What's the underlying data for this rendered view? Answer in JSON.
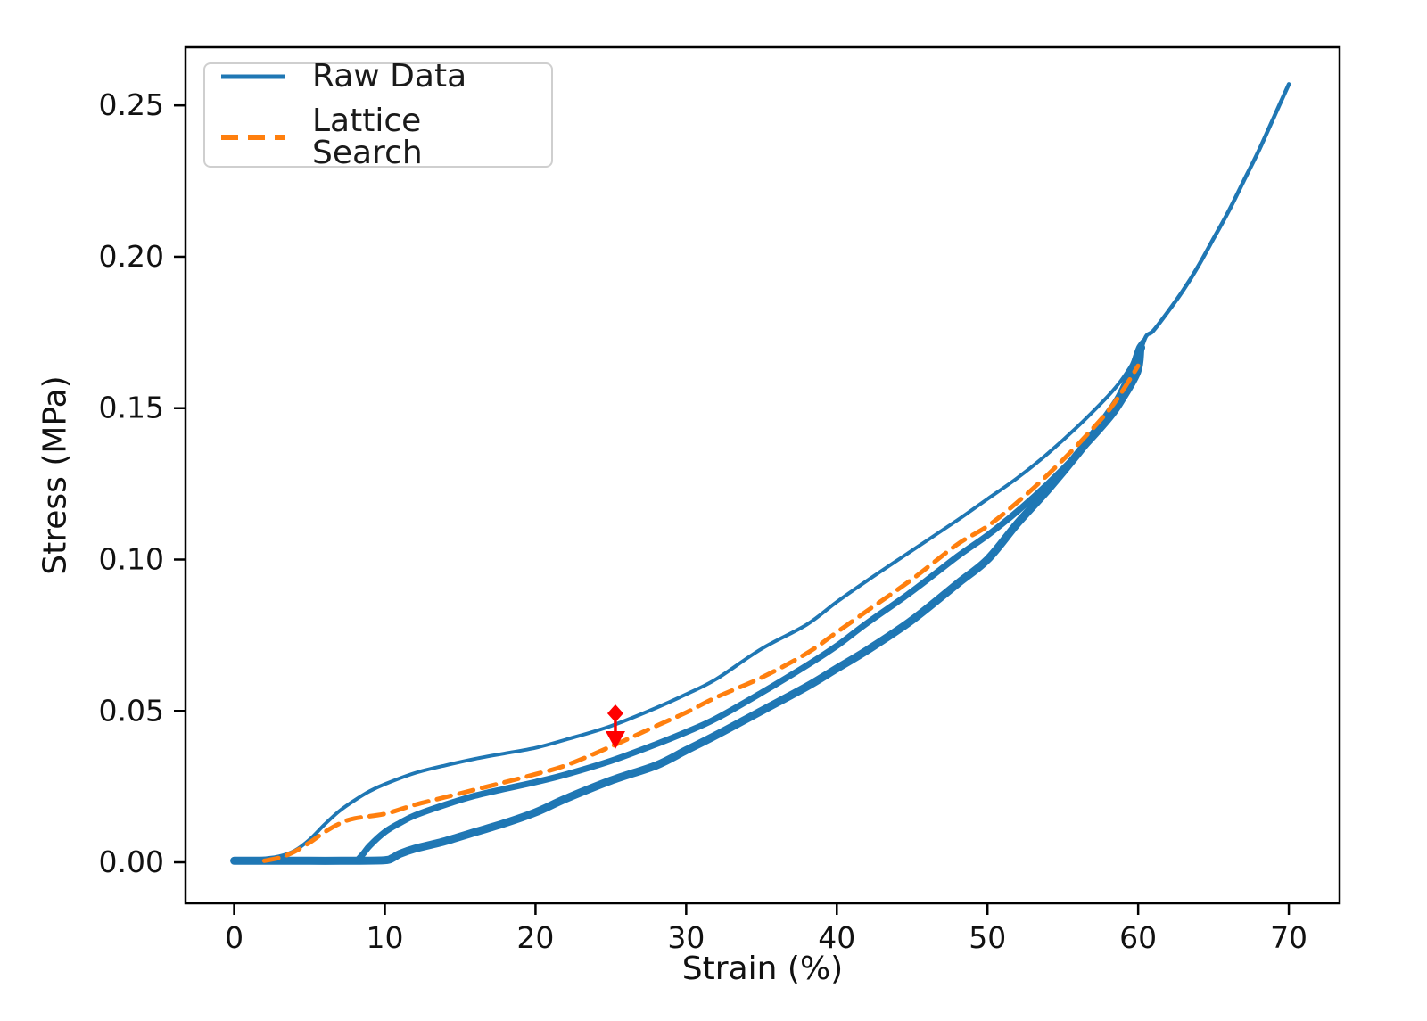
{
  "axes": {
    "xlabel": "Strain (%)",
    "ylabel": "Stress (MPa)",
    "x_ticks": {
      "values": [
        0,
        10,
        20,
        30,
        40,
        50,
        60,
        70
      ],
      "labels": [
        "0",
        "10",
        "20",
        "30",
        "40",
        "50",
        "60",
        "70"
      ]
    },
    "y_ticks": {
      "values": [
        0,
        0.05,
        0.1,
        0.15,
        0.2,
        0.25
      ],
      "labels": [
        "0.00",
        "0.05",
        "0.10",
        "0.15",
        "0.20",
        "0.25"
      ]
    }
  },
  "legend": {
    "items": [
      {
        "label": "Raw Data",
        "color": "#1f77b4",
        "style": "solid"
      },
      {
        "label": "Lattice Search",
        "color": "#ff7f0e",
        "style": "dashed"
      }
    ]
  },
  "colors": {
    "raw": "#1f77b4",
    "fit": "#ff7f0e",
    "annotation": "#ff0000",
    "frame": "#000000"
  },
  "chart_data": {
    "type": "line",
    "title": "",
    "xlabel": "Strain (%)",
    "ylabel": "Stress (MPa)",
    "xlim": [
      -3.23,
      73.37
    ],
    "ylim": [
      -0.01354,
      0.2692
    ],
    "grid": false,
    "legend_position": "upper left",
    "series": [
      {
        "name": "raw-first-loading",
        "legend": "Raw Data",
        "color": "#1f77b4",
        "width": 4,
        "dash": null,
        "points": [
          [
            0,
            0.0008
          ],
          [
            1,
            0.001
          ],
          [
            2,
            0.0013
          ],
          [
            3,
            0.002
          ],
          [
            4,
            0.0038
          ],
          [
            5,
            0.0075
          ],
          [
            6,
            0.0125
          ],
          [
            7,
            0.017
          ],
          [
            8,
            0.0205
          ],
          [
            9,
            0.0235
          ],
          [
            10,
            0.0258
          ],
          [
            12,
            0.0295
          ],
          [
            14,
            0.032
          ],
          [
            16,
            0.0342
          ],
          [
            18,
            0.036
          ],
          [
            20,
            0.0378
          ],
          [
            22,
            0.0405
          ],
          [
            25,
            0.045
          ],
          [
            28,
            0.051
          ],
          [
            30,
            0.0555
          ],
          [
            32,
            0.0605
          ],
          [
            35,
            0.0705
          ],
          [
            38,
            0.0785
          ],
          [
            40,
            0.086
          ],
          [
            42,
            0.093
          ],
          [
            45,
            0.103
          ],
          [
            48,
            0.113
          ],
          [
            50,
            0.12
          ],
          [
            52,
            0.127
          ],
          [
            54,
            0.135
          ],
          [
            56,
            0.144
          ],
          [
            58,
            0.154
          ],
          [
            59,
            0.16
          ],
          [
            60,
            0.168
          ],
          [
            60.3,
            0.1715
          ]
        ]
      },
      {
        "name": "raw-unloading-bundle",
        "legend": "Raw Data",
        "color": "#1f77b4",
        "width": 9,
        "dash": null,
        "points": [
          [
            60.2,
            0.17
          ],
          [
            59,
            0.156
          ],
          [
            58,
            0.148
          ],
          [
            56,
            0.135
          ],
          [
            54,
            0.123
          ],
          [
            52,
            0.112
          ],
          [
            50,
            0.1
          ],
          [
            48,
            0.092
          ],
          [
            45,
            0.08
          ],
          [
            42,
            0.07
          ],
          [
            40,
            0.064
          ],
          [
            38,
            0.058
          ],
          [
            35,
            0.05
          ],
          [
            32,
            0.042
          ],
          [
            30,
            0.037
          ],
          [
            28,
            0.032
          ],
          [
            25,
            0.027
          ],
          [
            22,
            0.021
          ],
          [
            20,
            0.0165
          ],
          [
            18,
            0.013
          ],
          [
            16,
            0.01
          ],
          [
            14,
            0.007
          ],
          [
            12,
            0.0045
          ],
          [
            11,
            0.0028
          ],
          [
            10.5,
            0.0014
          ],
          [
            10,
            0.0007
          ],
          [
            8,
            0.0005
          ],
          [
            5,
            0.0005
          ],
          [
            2,
            0.0005
          ],
          [
            0,
            0.0005
          ]
        ]
      },
      {
        "name": "raw-reloading-bundle",
        "legend": "Raw Data",
        "color": "#1f77b4",
        "width": 7,
        "dash": null,
        "points": [
          [
            8.2,
            0.0008
          ],
          [
            8.6,
            0.003
          ],
          [
            9,
            0.0055
          ],
          [
            10,
            0.01
          ],
          [
            11,
            0.013
          ],
          [
            12,
            0.0155
          ],
          [
            14,
            0.019
          ],
          [
            16,
            0.022
          ],
          [
            18,
            0.0243
          ],
          [
            20,
            0.0265
          ],
          [
            22,
            0.029
          ],
          [
            25,
            0.0335
          ],
          [
            28,
            0.039
          ],
          [
            30,
            0.043
          ],
          [
            32,
            0.0475
          ],
          [
            35,
            0.056
          ],
          [
            38,
            0.065
          ],
          [
            40,
            0.0715
          ],
          [
            42,
            0.079
          ],
          [
            45,
            0.0895
          ],
          [
            48,
            0.101
          ],
          [
            50,
            0.108
          ],
          [
            52,
            0.116
          ],
          [
            54,
            0.125
          ],
          [
            56,
            0.135
          ],
          [
            58,
            0.146
          ],
          [
            59,
            0.153
          ],
          [
            60,
            0.162
          ],
          [
            60.2,
            0.169
          ]
        ]
      },
      {
        "name": "raw-final-loading",
        "legend": "Raw Data",
        "color": "#1f77b4",
        "width": 4.5,
        "dash": null,
        "points": [
          [
            59.5,
            0.1575
          ],
          [
            60,
            0.166
          ],
          [
            60.5,
            0.1735
          ],
          [
            61,
            0.1755
          ],
          [
            62,
            0.182
          ],
          [
            63,
            0.189
          ],
          [
            64,
            0.197
          ],
          [
            65,
            0.206
          ],
          [
            66,
            0.215
          ],
          [
            67,
            0.225
          ],
          [
            68,
            0.235
          ],
          [
            69,
            0.246
          ],
          [
            70,
            0.257
          ]
        ]
      },
      {
        "name": "raw-peak-hook",
        "legend": "Raw Data",
        "color": "#1f77b4",
        "width": 4,
        "dash": null,
        "points": [
          [
            60.35,
            0.1725
          ],
          [
            60.0,
            0.1702
          ],
          [
            59.7,
            0.166
          ]
        ]
      },
      {
        "name": "lattice-search-fit",
        "legend": "Lattice Search",
        "color": "#ff7f0e",
        "width": 5,
        "dash": [
          16,
          10
        ],
        "points": [
          [
            2,
            0.0005
          ],
          [
            3,
            0.0015
          ],
          [
            4,
            0.0035
          ],
          [
            5,
            0.0065
          ],
          [
            6,
            0.01
          ],
          [
            7,
            0.0128
          ],
          [
            8,
            0.0145
          ],
          [
            10,
            0.016
          ],
          [
            12,
            0.019
          ],
          [
            14,
            0.0215
          ],
          [
            16,
            0.024
          ],
          [
            18,
            0.0265
          ],
          [
            20,
            0.0291
          ],
          [
            22,
            0.032
          ],
          [
            25,
            0.0382
          ],
          [
            28,
            0.045
          ],
          [
            30,
            0.0495
          ],
          [
            32,
            0.0545
          ],
          [
            35,
            0.061
          ],
          [
            38,
            0.069
          ],
          [
            40,
            0.076
          ],
          [
            42,
            0.083
          ],
          [
            45,
            0.0935
          ],
          [
            48,
            0.105
          ],
          [
            50,
            0.111
          ],
          [
            52,
            0.119
          ],
          [
            54,
            0.128
          ],
          [
            56,
            0.138
          ],
          [
            58,
            0.149
          ],
          [
            59,
            0.156
          ],
          [
            60,
            0.164
          ]
        ]
      }
    ],
    "annotation": {
      "name": "error-arrow",
      "x": 25.3,
      "y_start": 0.0492,
      "y_end": 0.0374,
      "color": "#ff0000"
    }
  }
}
